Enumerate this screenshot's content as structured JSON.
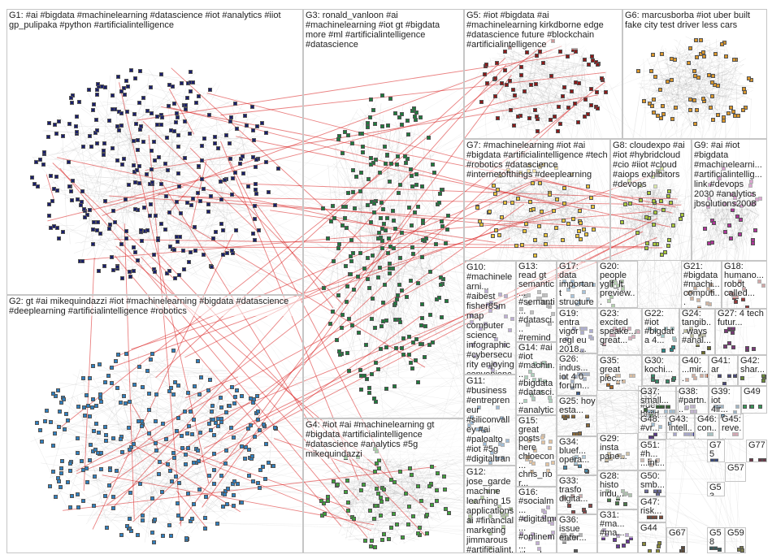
{
  "groups": [
    {
      "id": "G1",
      "label": "G1: #ai #bigdata #machinelearning #datascience #iot #analytics #iiot gp_pulipaka #python #artificialintelligence",
      "color": "#1a1f6b"
    },
    {
      "id": "G2",
      "label": "G2: gt #ai mikequindazzi #iot #machinelearning #bigdata #datascience #deeplearning #artificialintelligence #robotics",
      "color": "#2f7fbf"
    },
    {
      "id": "G3",
      "label": "G3: ronald_vanloon #ai #machinelearning #iot gt #bigdata more #ml #artificialintelligence #datascience",
      "color": "#1e7a3c"
    },
    {
      "id": "G4",
      "label": "G4: #iot #ai #machinelearning gt #bigdata #artificialintelligence #datascience #analytics #5g mikequindazzi",
      "color": "#3fa13a"
    },
    {
      "id": "G5",
      "label": "G5: #iot #bigdata #ai #machinelearning kirkdborne edge #datascience future #blockchain #artificialintelligence",
      "color": "#8c1a1a"
    },
    {
      "id": "G6",
      "label": "G6: marcusborba #iot uber built fake city test driver less cars",
      "color": "#d9962b"
    },
    {
      "id": "G7",
      "label": "G7: #machinelearning #iot #ai #bigdata #artificialintelligence #tech #robotics #datascience #internetofthings #deeplearning",
      "color": "#e8c23a"
    },
    {
      "id": "G8",
      "label": "G8: cloudexpo #ai #iot #hybridcloud #cio #iiot #cloud #aiops exhibitors #devops",
      "color": "#a8c83a"
    },
    {
      "id": "G9",
      "label": "G9: #ai #iot #bigdata #machinelearni... #artificialintellig... link #devops 2030 #analytics jbsolutions2008",
      "color": "#b0359a"
    },
    {
      "id": "G10",
      "label": "G10: #machinelearni... #aibest fisher85m map computer science infographic #cybersecurity enjoying convenience",
      "color": "#6a4ba0"
    },
    {
      "id": "G11",
      "label": "G11: #business #entrepreneur #siliconvalley #ai #paloalto #iot #5g #digitaltransfor... #internetofthings #technology",
      "color": "#2a6ea8"
    },
    {
      "id": "G12",
      "label": "G12: jose_garde machine learning 15 applications ai #financial marketing jimmarous #artificialint...",
      "color": "#5a8f2a"
    },
    {
      "id": "G13",
      "label": "G13: read gt semantic... #semanti... #datasci... #reminder submit...",
      "color": "#777777"
    },
    {
      "id": "G14",
      "label": "G14: #ai #iot #machin... #bigdata #datasci... #analytics gp_pulip...",
      "color": "#4a9a6a"
    },
    {
      "id": "G15",
      "label": "G15: great posts here chloecon... chris_nor... shehack... cecilphill...",
      "color": "#c07a2a"
    },
    {
      "id": "G16",
      "label": "G16: #socialm... #digitalm... #onlinem... #localse...",
      "color": "#7a4aa0"
    },
    {
      "id": "G17",
      "label": "G17: data important structured personal...",
      "color": "#3a7ab0"
    },
    {
      "id": "G18",
      "label": "G18: humano... robot called...",
      "color": "#9a3a3a"
    },
    {
      "id": "G19",
      "label": "G19: entra vigor regl eu 2018...",
      "color": "#4a4a9a"
    },
    {
      "id": "G20",
      "label": "G20: people yglf_lt preview...",
      "color": "#5a9a4a"
    },
    {
      "id": "G21",
      "label": "G21: #bigdata #machi... computi...",
      "color": "#9a5a2a"
    },
    {
      "id": "G22",
      "label": "G22: #iot #bigdata 4...",
      "color": "#2a8a8a"
    },
    {
      "id": "G23",
      "label": "G23: excited speake... great...",
      "color": "#aa4a6a"
    },
    {
      "id": "G24",
      "label": "G24: tangib... ways #anal...",
      "color": "#6a6a2a"
    },
    {
      "id": "G25",
      "label": "G25: hoy esta...",
      "color": "#8a6a3a"
    },
    {
      "id": "G26",
      "label": "G26: indus... iot 4 0 forum...",
      "color": "#3a5a8a"
    },
    {
      "id": "G27",
      "label": "G27: 4 tech futur...",
      "color": "#7a3a7a"
    },
    {
      "id": "G28",
      "label": "G28: histo indu...",
      "color": "#4a7a4a"
    },
    {
      "id": "G29",
      "label": "G29: insta pane...",
      "color": "#9a7a3a"
    },
    {
      "id": "G30",
      "label": "G30: kochi...",
      "color": "#3a8a6a"
    },
    {
      "id": "G31",
      "label": "G31: #ma... #ma...",
      "color": "#6a3a9a"
    },
    {
      "id": "G32",
      "label": "G32: #dee... build...",
      "color": "#2a6a9a"
    },
    {
      "id": "G33",
      "label": "G33: trasfo digita...",
      "color": "#8a4a4a"
    },
    {
      "id": "G34",
      "label": "G34: bluef... opera...",
      "color": "#4a8aaa"
    },
    {
      "id": "G35",
      "label": "G35: great piec...",
      "color": "#aa6a2a"
    },
    {
      "id": "G36",
      "label": "G36: issue enter...",
      "color": "#5a5a5a"
    },
    {
      "id": "G37",
      "label": "G37: small...",
      "color": "#3a6a3a"
    },
    {
      "id": "G38",
      "label": "G38: #partn...",
      "color": "#7a5a9a"
    },
    {
      "id": "G39",
      "label": "G39: iot 4ir...",
      "color": "#2a5a7a"
    },
    {
      "id": "G40",
      "label": "G40: ...mir...",
      "color": "#9a4a2a"
    },
    {
      "id": "G41",
      "label": "G41: ar",
      "color": "#4a4a7a"
    },
    {
      "id": "G42",
      "label": "G42: shar...",
      "color": "#6a8a3a"
    },
    {
      "id": "G43",
      "label": "G43: intell...",
      "color": "#3a3a8a"
    },
    {
      "id": "G44",
      "label": "G44",
      "color": "#8a8a3a"
    },
    {
      "id": "G45",
      "label": "G45: reve...",
      "color": "#aa3a5a"
    },
    {
      "id": "G46",
      "label": "G46: con...",
      "color": "#3a7a7a"
    },
    {
      "id": "G47",
      "label": "G47: risk...",
      "color": "#7a4a3a"
    },
    {
      "id": "G48",
      "label": "G48: #vr...",
      "color": "#5a3a8a"
    },
    {
      "id": "G49",
      "label": "G49",
      "color": "#3a9a5a"
    },
    {
      "id": "G50",
      "label": "G50: smb...",
      "color": "#6a6a9a"
    },
    {
      "id": "G51",
      "label": "G51: #h... ...int...",
      "color": "#9a6a5a"
    },
    {
      "id": "G53",
      "label": "G53",
      "color": "#4a6a4a"
    },
    {
      "id": "G57",
      "label": "G57",
      "color": "#8a3a6a"
    },
    {
      "id": "G58",
      "label": "G58",
      "color": "#3a5a5a"
    },
    {
      "id": "G59",
      "label": "G59",
      "color": "#7a7a4a"
    },
    {
      "id": "G67",
      "label": "G67",
      "color": "#5a4a3a"
    },
    {
      "id": "G75",
      "label": "G75",
      "color": "#3a4a7a"
    },
    {
      "id": "G77",
      "label": "G77",
      "color": "#6a3a4a"
    }
  ]
}
